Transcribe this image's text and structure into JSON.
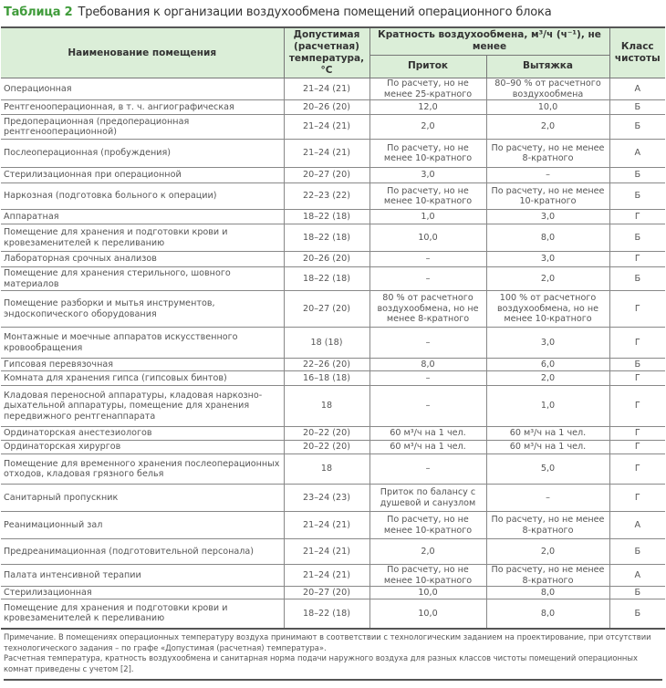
{
  "title": {
    "number": "Таблица 2",
    "text": "Требования к организации воздухообмена помещений операционного блока"
  },
  "header": {
    "name": "Наименование помещения",
    "temp": "Допустимая (расчетная) температура, °С",
    "exchange": "Кратность воздухообмена, м³/ч (ч⁻¹), не менее",
    "supply": "Приток",
    "exhaust": "Вытяжка",
    "class": "Класс чистоты"
  },
  "rows": [
    {
      "name": "Операционная",
      "temp": "21–24 (21)",
      "supply": "По расчету, но не менее 25-кратного",
      "exhaust": "80–90 % от расчетного воздухообмена",
      "class": "А"
    },
    {
      "name": "Рентгенооперационная, в т. ч. ангиографическая",
      "temp": "20–26 (20)",
      "supply": "12,0",
      "exhaust": "10,0",
      "class": "Б"
    },
    {
      "name": "Предоперационная (предоперационная рентгенооперационной)",
      "temp": "21–24 (21)",
      "supply": "2,0",
      "exhaust": "2,0",
      "class": "Б"
    },
    {
      "name": "Послеоперационная (пробуждения)",
      "temp": "21–24 (21)",
      "supply": "По расчету, но не менее 10-кратного",
      "exhaust": "По расчету, но не менее 8-кратного",
      "class": "А"
    },
    {
      "name": "Стерилизационная при операционной",
      "temp": "20–27 (20)",
      "supply": "3,0",
      "exhaust": "–",
      "class": "Б"
    },
    {
      "name": "Наркозная (подготовка больного к операции)",
      "temp": "22–23 (22)",
      "supply": "По расчету, но не менее 10-кратного",
      "exhaust": "По расчету, но не менее 10-кратного",
      "class": "Б"
    },
    {
      "name": "Аппаратная",
      "temp": "18–22 (18)",
      "supply": "1,0",
      "exhaust": "3,0",
      "class": "Г"
    },
    {
      "name": "Помещение для хранения и подготовки крови и кровезаменителей к переливанию",
      "temp": "18–22 (18)",
      "supply": "10,0",
      "exhaust": "8,0",
      "class": "Б"
    },
    {
      "name": "Лабораторная срочных анализов",
      "temp": "20–26 (20)",
      "supply": "–",
      "exhaust": "3,0",
      "class": "Г"
    },
    {
      "name": "Помещение для хранения стерильного, шовного материалов",
      "temp": "18–22 (18)",
      "supply": "–",
      "exhaust": "2,0",
      "class": "Б"
    },
    {
      "name": "Помещение разборки и мытья инструментов, эндоскопического оборудования",
      "temp": "20–27 (20)",
      "supply": "80 % от расчетного воздухообмена, но не менее 8-кратного",
      "exhaust": "100 % от расчетного воздухообмена, но не менее 10-кратного",
      "class": "Г"
    },
    {
      "name": "Монтажные и моечные аппаратов искусственного кровообращения",
      "temp": "18 (18)",
      "supply": "–",
      "exhaust": "3,0",
      "class": "Г"
    },
    {
      "name": "Гипсовая перевязочная",
      "temp": "22–26 (20)",
      "supply": "8,0",
      "exhaust": "6,0",
      "class": "Б"
    },
    {
      "name": "Комната для хранения гипса (гипсовых бинтов)",
      "temp": "16–18 (18)",
      "supply": "–",
      "exhaust": "2,0",
      "class": "Г"
    },
    {
      "name": "Кладовая переносной аппаратуры, кладовая наркозно-дыхательной аппаратуры, помещение для хранения передвижного рентгенаппарата",
      "temp": "18",
      "supply": "–",
      "exhaust": "1,0",
      "class": "Г"
    },
    {
      "name": "Ординаторская анестезиологов",
      "temp": "20–22 (20)",
      "supply": "60 м³/ч на 1 чел.",
      "exhaust": "60 м³/ч на 1 чел.",
      "class": "Г"
    },
    {
      "name": "Ординаторская хирургов",
      "temp": "20–22 (20)",
      "supply": "60 м³/ч на 1 чел.",
      "exhaust": "60 м³/ч на 1 чел.",
      "class": "Г"
    },
    {
      "name": "Помещение для временного хранения послеоперационных отходов, кладовая грязного белья",
      "temp": "18",
      "supply": "–",
      "exhaust": "5,0",
      "class": "Г"
    },
    {
      "name": "Санитарный пропускник",
      "temp": "23–24 (23)",
      "supply": "Приток по балансу с душевой и санузлом",
      "exhaust": "–",
      "class": "Г"
    },
    {
      "name": "Реанимационный зал",
      "temp": "21–24 (21)",
      "supply": "По расчету, но не менее 10-кратного",
      "exhaust": "По расчету, но не менее 8-кратного",
      "class": "А"
    },
    {
      "name": "Предреанимационная (подготовительной персонала)",
      "temp": "21–24 (21)",
      "supply": "2,0",
      "exhaust": "2,0",
      "class": "Б"
    },
    {
      "name": "Палата интенсивной терапии",
      "temp": "21–24 (21)",
      "supply": "По расчету, но не менее 10-кратного",
      "exhaust": "По расчету, но не менее 8-кратного",
      "class": "А"
    },
    {
      "name": "Стерилизационная",
      "temp": "20–27 (20)",
      "supply": "10,0",
      "exhaust": "8,0",
      "class": "Б"
    },
    {
      "name": "Помещение для хранения и подготовки крови и кровезаменителей к переливанию",
      "temp": "18–22 (18)",
      "supply": "10,0",
      "exhaust": "8,0",
      "class": "Б"
    }
  ],
  "note": {
    "p1": "Примечание. В помещениях операционных температуру воздуха принимают в соответствии с технологическим заданием на проектирование, при отсутствии технологического задания – по графе «Допустимая (расчетная) температура».",
    "p2": "Расчетная температура, кратность воздухообмена и санитарная норма подачи наружного воздуха для разных классов чистоты помещений операционных комнат приведены с учетом [2]."
  },
  "colors": {
    "accent": "#3f9b3a",
    "header_bg": "#dbeed8"
  }
}
